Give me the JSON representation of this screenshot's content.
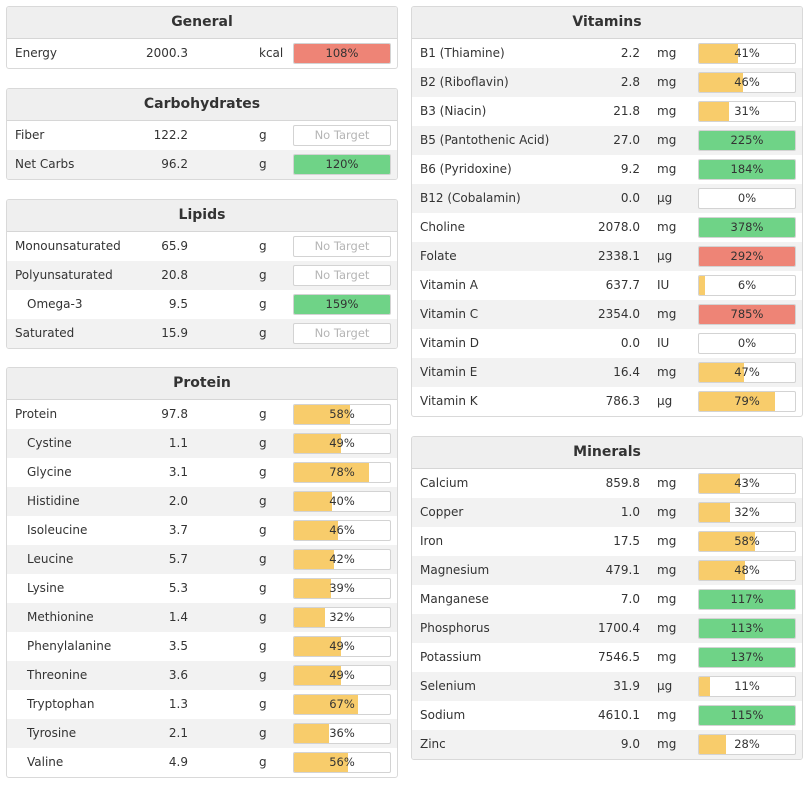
{
  "colors": {
    "orange": "#f8cc6b",
    "green": "#6fd387",
    "red": "#ee8476"
  },
  "panels": [
    {
      "id": "general",
      "title": "General",
      "rows": [
        {
          "name": "Energy",
          "value": "2000.3",
          "unit": "kcal",
          "pct": 108,
          "label": "108%",
          "color": "red"
        }
      ]
    },
    {
      "id": "carbohydrates",
      "title": "Carbohydrates",
      "rows": [
        {
          "name": "Fiber",
          "value": "122.2",
          "unit": "g",
          "pct": 0,
          "label": "No Target",
          "color": "none"
        },
        {
          "name": "Net Carbs",
          "value": "96.2",
          "unit": "g",
          "pct": 120,
          "label": "120%",
          "color": "green"
        }
      ]
    },
    {
      "id": "lipids",
      "title": "Lipids",
      "rows": [
        {
          "name": "Monounsaturated",
          "value": "65.9",
          "unit": "g",
          "pct": 0,
          "label": "No Target",
          "color": "none"
        },
        {
          "name": "Polyunsaturated",
          "value": "20.8",
          "unit": "g",
          "pct": 0,
          "label": "No Target",
          "color": "none"
        },
        {
          "name": "Omega-3",
          "value": "9.5",
          "unit": "g",
          "pct": 159,
          "label": "159%",
          "color": "green",
          "indent": true
        },
        {
          "name": "Saturated",
          "value": "15.9",
          "unit": "g",
          "pct": 0,
          "label": "No Target",
          "color": "none"
        }
      ]
    },
    {
      "id": "protein",
      "title": "Protein",
      "rows": [
        {
          "name": "Protein",
          "value": "97.8",
          "unit": "g",
          "pct": 58,
          "label": "58%",
          "color": "orange"
        },
        {
          "name": "Cystine",
          "value": "1.1",
          "unit": "g",
          "pct": 49,
          "label": "49%",
          "color": "orange",
          "indent": true
        },
        {
          "name": "Glycine",
          "value": "3.1",
          "unit": "g",
          "pct": 78,
          "label": "78%",
          "color": "orange",
          "indent": true
        },
        {
          "name": "Histidine",
          "value": "2.0",
          "unit": "g",
          "pct": 40,
          "label": "40%",
          "color": "orange",
          "indent": true
        },
        {
          "name": "Isoleucine",
          "value": "3.7",
          "unit": "g",
          "pct": 46,
          "label": "46%",
          "color": "orange",
          "indent": true
        },
        {
          "name": "Leucine",
          "value": "5.7",
          "unit": "g",
          "pct": 42,
          "label": "42%",
          "color": "orange",
          "indent": true
        },
        {
          "name": "Lysine",
          "value": "5.3",
          "unit": "g",
          "pct": 39,
          "label": "39%",
          "color": "orange",
          "indent": true
        },
        {
          "name": "Methionine",
          "value": "1.4",
          "unit": "g",
          "pct": 32,
          "label": "32%",
          "color": "orange",
          "indent": true
        },
        {
          "name": "Phenylalanine",
          "value": "3.5",
          "unit": "g",
          "pct": 49,
          "label": "49%",
          "color": "orange",
          "indent": true
        },
        {
          "name": "Threonine",
          "value": "3.6",
          "unit": "g",
          "pct": 49,
          "label": "49%",
          "color": "orange",
          "indent": true
        },
        {
          "name": "Tryptophan",
          "value": "1.3",
          "unit": "g",
          "pct": 67,
          "label": "67%",
          "color": "orange",
          "indent": true
        },
        {
          "name": "Tyrosine",
          "value": "2.1",
          "unit": "g",
          "pct": 36,
          "label": "36%",
          "color": "orange",
          "indent": true
        },
        {
          "name": "Valine",
          "value": "4.9",
          "unit": "g",
          "pct": 56,
          "label": "56%",
          "color": "orange",
          "indent": true
        }
      ]
    },
    {
      "id": "vitamins",
      "title": "Vitamins",
      "rows": [
        {
          "name": "B1 (Thiamine)",
          "value": "2.2",
          "unit": "mg",
          "pct": 41,
          "label": "41%",
          "color": "orange"
        },
        {
          "name": "B2 (Riboflavin)",
          "value": "2.8",
          "unit": "mg",
          "pct": 46,
          "label": "46%",
          "color": "orange"
        },
        {
          "name": "B3 (Niacin)",
          "value": "21.8",
          "unit": "mg",
          "pct": 31,
          "label": "31%",
          "color": "orange"
        },
        {
          "name": "B5 (Pantothenic Acid)",
          "value": "27.0",
          "unit": "mg",
          "pct": 225,
          "label": "225%",
          "color": "green"
        },
        {
          "name": "B6 (Pyridoxine)",
          "value": "9.2",
          "unit": "mg",
          "pct": 184,
          "label": "184%",
          "color": "green"
        },
        {
          "name": "B12 (Cobalamin)",
          "value": "0.0",
          "unit": "µg",
          "pct": 0,
          "label": "0%",
          "color": "orange"
        },
        {
          "name": "Choline",
          "value": "2078.0",
          "unit": "mg",
          "pct": 378,
          "label": "378%",
          "color": "green"
        },
        {
          "name": "Folate",
          "value": "2338.1",
          "unit": "µg",
          "pct": 292,
          "label": "292%",
          "color": "red"
        },
        {
          "name": "Vitamin A",
          "value": "637.7",
          "unit": "IU",
          "pct": 6,
          "label": "6%",
          "color": "orange"
        },
        {
          "name": "Vitamin C",
          "value": "2354.0",
          "unit": "mg",
          "pct": 785,
          "label": "785%",
          "color": "red"
        },
        {
          "name": "Vitamin D",
          "value": "0.0",
          "unit": "IU",
          "pct": 0,
          "label": "0%",
          "color": "orange"
        },
        {
          "name": "Vitamin E",
          "value": "16.4",
          "unit": "mg",
          "pct": 47,
          "label": "47%",
          "color": "orange"
        },
        {
          "name": "Vitamin K",
          "value": "786.3",
          "unit": "µg",
          "pct": 79,
          "label": "79%",
          "color": "orange"
        }
      ]
    },
    {
      "id": "minerals",
      "title": "Minerals",
      "rows": [
        {
          "name": "Calcium",
          "value": "859.8",
          "unit": "mg",
          "pct": 43,
          "label": "43%",
          "color": "orange"
        },
        {
          "name": "Copper",
          "value": "1.0",
          "unit": "mg",
          "pct": 32,
          "label": "32%",
          "color": "orange"
        },
        {
          "name": "Iron",
          "value": "17.5",
          "unit": "mg",
          "pct": 58,
          "label": "58%",
          "color": "orange"
        },
        {
          "name": "Magnesium",
          "value": "479.1",
          "unit": "mg",
          "pct": 48,
          "label": "48%",
          "color": "orange"
        },
        {
          "name": "Manganese",
          "value": "7.0",
          "unit": "mg",
          "pct": 117,
          "label": "117%",
          "color": "green"
        },
        {
          "name": "Phosphorus",
          "value": "1700.4",
          "unit": "mg",
          "pct": 113,
          "label": "113%",
          "color": "green"
        },
        {
          "name": "Potassium",
          "value": "7546.5",
          "unit": "mg",
          "pct": 137,
          "label": "137%",
          "color": "green"
        },
        {
          "name": "Selenium",
          "value": "31.9",
          "unit": "µg",
          "pct": 11,
          "label": "11%",
          "color": "orange"
        },
        {
          "name": "Sodium",
          "value": "4610.1",
          "unit": "mg",
          "pct": 115,
          "label": "115%",
          "color": "green"
        },
        {
          "name": "Zinc",
          "value": "9.0",
          "unit": "mg",
          "pct": 28,
          "label": "28%",
          "color": "orange"
        }
      ]
    }
  ]
}
